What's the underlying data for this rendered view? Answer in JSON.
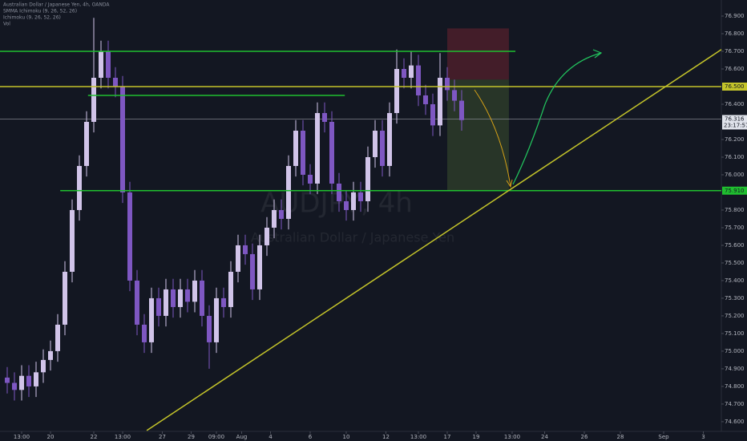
{
  "chart_data": {
    "type": "candlestick",
    "legend": [
      "Australian Dollar / Japanese Yen, 4h, OANDA",
      "SMMA Ichimoku (9, 26, 52, 26)",
      "Ichimoku (9, 26, 52, 26)",
      "Vol"
    ],
    "watermark": [
      "AUDJPY, 4h",
      "Australian Dollar / Japanese Yen"
    ],
    "up_color": "#d1c4e9",
    "down_color": "#7e57c2",
    "xlim": [
      -2,
      198
    ],
    "ylim": [
      74.545,
      76.991
    ],
    "x": [
      0,
      2,
      4,
      6,
      8,
      10,
      12,
      14,
      16,
      18,
      20,
      22,
      24,
      26,
      28,
      30,
      32,
      34,
      36,
      38,
      40,
      42,
      44,
      46,
      48,
      50,
      52,
      54,
      56,
      58,
      60,
      62,
      64,
      66,
      68,
      70,
      72,
      74,
      76,
      78,
      80,
      82,
      84,
      86,
      88,
      90,
      92,
      94,
      96,
      98,
      100,
      102,
      104,
      106,
      108,
      110,
      112,
      114,
      116,
      118,
      120,
      122,
      124,
      126
    ],
    "open": [
      74.85,
      74.82,
      74.78,
      74.86,
      74.8,
      74.88,
      74.95,
      75.0,
      75.15,
      75.45,
      75.8,
      76.05,
      76.3,
      76.55,
      76.7,
      76.55,
      76.5,
      75.9,
      75.4,
      75.15,
      75.05,
      75.3,
      75.2,
      75.35,
      75.25,
      75.35,
      75.28,
      75.4,
      75.2,
      75.05,
      75.3,
      75.25,
      75.45,
      75.6,
      75.55,
      75.35,
      75.6,
      75.7,
      75.8,
      75.75,
      76.05,
      76.25,
      76.0,
      75.95,
      76.35,
      76.3,
      75.95,
      75.85,
      75.8,
      75.9,
      75.85,
      76.1,
      76.25,
      76.05,
      76.35,
      76.6,
      76.55,
      76.62,
      76.45,
      76.4,
      76.28,
      76.55,
      76.48,
      76.42
    ],
    "high": [
      74.91,
      74.88,
      74.92,
      74.92,
      74.94,
      75.01,
      75.06,
      75.21,
      75.51,
      75.86,
      76.11,
      76.36,
      76.89,
      76.76,
      76.76,
      76.61,
      76.56,
      75.96,
      75.46,
      75.21,
      75.36,
      75.36,
      75.41,
      75.41,
      75.41,
      75.41,
      75.46,
      75.46,
      75.26,
      75.36,
      75.36,
      75.51,
      75.66,
      75.66,
      75.61,
      75.66,
      75.76,
      75.86,
      75.86,
      76.11,
      76.31,
      76.31,
      76.06,
      76.41,
      76.41,
      76.36,
      76.01,
      75.91,
      75.96,
      75.96,
      76.16,
      76.31,
      76.31,
      76.41,
      76.71,
      76.66,
      76.7,
      76.68,
      76.51,
      76.46,
      76.69,
      76.61,
      76.54,
      76.48
    ],
    "low": [
      74.76,
      74.72,
      74.72,
      74.74,
      74.74,
      74.82,
      74.89,
      74.94,
      75.09,
      75.39,
      75.74,
      75.99,
      76.24,
      76.49,
      76.49,
      76.44,
      75.84,
      75.34,
      75.09,
      74.99,
      74.99,
      75.14,
      75.14,
      75.19,
      75.19,
      75.22,
      75.22,
      75.14,
      74.9,
      74.99,
      75.19,
      75.19,
      75.39,
      75.49,
      75.29,
      75.29,
      75.54,
      75.64,
      75.69,
      75.69,
      75.99,
      75.94,
      75.89,
      75.89,
      76.24,
      75.89,
      75.79,
      75.74,
      75.74,
      75.79,
      75.79,
      76.04,
      75.99,
      75.99,
      76.29,
      76.49,
      76.49,
      76.39,
      76.34,
      76.22,
      76.22,
      76.42,
      76.36,
      76.25
    ],
    "close": [
      74.82,
      74.78,
      74.86,
      74.8,
      74.88,
      74.95,
      75.0,
      75.15,
      75.45,
      75.8,
      76.05,
      76.3,
      76.55,
      76.7,
      76.55,
      76.5,
      75.9,
      75.4,
      75.15,
      75.05,
      75.3,
      75.2,
      75.35,
      75.25,
      75.35,
      75.28,
      75.4,
      75.2,
      75.05,
      75.3,
      75.25,
      75.45,
      75.6,
      75.55,
      75.35,
      75.6,
      75.7,
      75.8,
      75.75,
      76.05,
      76.25,
      76.0,
      75.95,
      76.35,
      76.3,
      75.95,
      75.85,
      75.8,
      75.9,
      75.85,
      76.1,
      76.25,
      76.05,
      76.35,
      76.6,
      76.55,
      76.62,
      76.45,
      76.4,
      76.28,
      76.55,
      76.48,
      76.42,
      76.31
    ],
    "yticks": [
      {
        "value": 76.9,
        "label": "76.900"
      },
      {
        "value": 76.8,
        "label": "76.800"
      },
      {
        "value": 76.7,
        "label": "76.700"
      },
      {
        "value": 76.6,
        "label": "76.600"
      },
      {
        "value": 76.4,
        "label": "76.400"
      },
      {
        "value": 76.2,
        "label": "76.200"
      },
      {
        "value": 76.1,
        "label": "76.100"
      },
      {
        "value": 76.0,
        "label": "76.000"
      },
      {
        "value": 75.8,
        "label": "75.800"
      },
      {
        "value": 75.7,
        "label": "75.700"
      },
      {
        "value": 75.6,
        "label": "75.600"
      },
      {
        "value": 75.5,
        "label": "75.500"
      },
      {
        "value": 75.4,
        "label": "75.400"
      },
      {
        "value": 75.3,
        "label": "75.300"
      },
      {
        "value": 75.2,
        "label": "75.200"
      },
      {
        "value": 75.1,
        "label": "75.100"
      },
      {
        "value": 75.0,
        "label": "75.000"
      },
      {
        "value": 74.9,
        "label": "74.900"
      },
      {
        "value": 74.8,
        "label": "74.800"
      },
      {
        "value": 74.7,
        "label": "74.700"
      },
      {
        "value": 74.6,
        "label": "74.600"
      }
    ],
    "xticks": [
      {
        "value": 4,
        "label": "13:00"
      },
      {
        "value": 12,
        "label": "20"
      },
      {
        "value": 24,
        "label": "22"
      },
      {
        "value": 32,
        "label": "13:00"
      },
      {
        "value": 43,
        "label": "27"
      },
      {
        "value": 51,
        "label": "29"
      },
      {
        "value": 58,
        "label": "09:00"
      },
      {
        "value": 65,
        "label": "Aug"
      },
      {
        "value": 73,
        "label": "4"
      },
      {
        "value": 84,
        "label": "6"
      },
      {
        "value": 94,
        "label": "10"
      },
      {
        "value": 105,
        "label": "12"
      },
      {
        "value": 114,
        "label": "13:00"
      },
      {
        "value": 122,
        "label": "17"
      },
      {
        "value": 130,
        "label": "19"
      },
      {
        "value": 140,
        "label": "13:00"
      },
      {
        "value": 149,
        "label": "24"
      },
      {
        "value": 160,
        "label": "26"
      },
      {
        "value": 170,
        "label": "28"
      },
      {
        "value": 182,
        "label": "Sep"
      },
      {
        "value": 193,
        "label": "3"
      }
    ],
    "hlines": [
      {
        "price": 76.7,
        "color": "#1fbf2f",
        "x": [
          -2,
          140.9
        ]
      },
      {
        "price": 76.5,
        "color": "#c4c42a",
        "x": [
          -2,
          198
        ],
        "label": "76.500"
      },
      {
        "price": 76.45,
        "color": "#1fbf2f",
        "x": [
          22.4,
          93.6
        ]
      },
      {
        "price": 75.91,
        "color": "#1fbf2f",
        "x": [
          14.7,
          198
        ],
        "label": "75.910"
      }
    ],
    "trendline": {
      "color": "#c4c42a",
      "x": [
        38.7,
        198
      ],
      "y": [
        74.55,
        76.71
      ]
    },
    "position": {
      "x": [
        122,
        139.1
      ],
      "stop": 76.83,
      "entry": 76.54,
      "target": 75.91
    },
    "last_price": {
      "value": 76.316,
      "label": "76.316",
      "countdown": "23:17:57"
    }
  }
}
